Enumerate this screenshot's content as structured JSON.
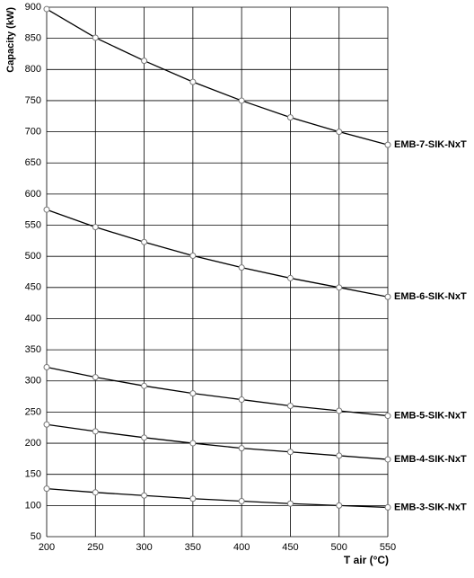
{
  "chart_data": {
    "type": "line",
    "x_label": "T air (°C)",
    "y_label": "Capacity (kW)",
    "x": [
      200,
      250,
      300,
      350,
      400,
      450,
      500,
      550
    ],
    "series": [
      {
        "name": "EMB-7-SIK-NxT",
        "color": "#000000",
        "values": [
          897,
          851,
          814,
          780,
          750,
          723,
          700,
          679
        ]
      },
      {
        "name": "EMB-6-SIK-NxT",
        "color": "#000000",
        "values": [
          575,
          547,
          523,
          501,
          482,
          465,
          450,
          435
        ]
      },
      {
        "name": "EMB-5-SIK-NxT",
        "color": "#000000",
        "values": [
          322,
          306,
          292,
          280,
          270,
          260,
          252,
          244
        ]
      },
      {
        "name": "EMB-4-SIK-NxT",
        "color": "#000000",
        "values": [
          230,
          219,
          209,
          200,
          192,
          186,
          180,
          174
        ]
      },
      {
        "name": "EMB-3-SIK-NxT",
        "color": "#000000",
        "values": [
          127,
          121,
          116,
          111,
          107,
          103,
          100,
          97
        ]
      }
    ],
    "xlim": [
      200,
      550
    ],
    "xticks": [
      200,
      250,
      300,
      350,
      400,
      450,
      500,
      550
    ],
    "ylim": [
      50,
      900
    ],
    "yticks": [
      50,
      100,
      150,
      200,
      250,
      300,
      350,
      400,
      450,
      500,
      550,
      600,
      650,
      700,
      750,
      800,
      850,
      900
    ],
    "grid": true
  }
}
